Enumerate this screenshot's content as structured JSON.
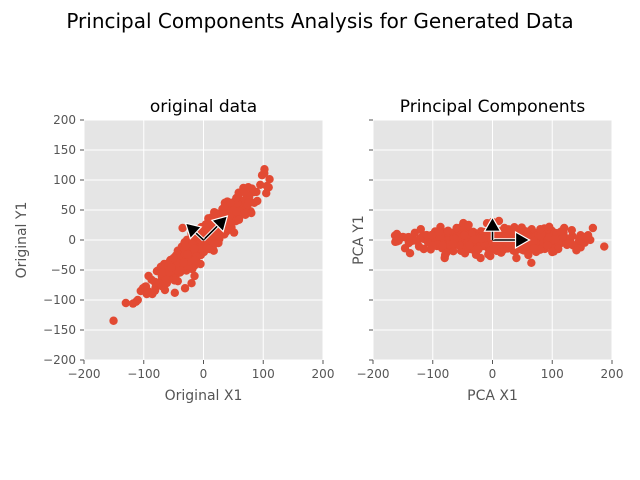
{
  "figure": {
    "title": "Principal Components Analysis for Generated Data",
    "background": "#ffffff",
    "axes_background": "#e5e5e5",
    "grid_color": "#ffffff",
    "point_color": "#e24a33",
    "arrow_color": "#000000"
  },
  "chart_data": [
    {
      "type": "scatter",
      "title": "original data",
      "xlabel": "Original X1",
      "ylabel": "Original Y1",
      "xlim": [
        -200,
        200
      ],
      "ylim": [
        -200,
        200
      ],
      "xticks": [
        -200,
        -100,
        0,
        100,
        200
      ],
      "yticks": [
        -200,
        -150,
        -100,
        -50,
        0,
        50,
        100,
        150,
        200
      ],
      "show_y_ticklabels": true,
      "grid": true,
      "cloud": {
        "kind": "correlated",
        "n": 600,
        "center": [
          0,
          0
        ],
        "major_sd": 50,
        "minor_sd": 9,
        "angle_deg": 43
      },
      "points": [
        [
          -130,
          -105
        ],
        [
          -118,
          -106
        ],
        [
          -113,
          -103
        ],
        [
          -110,
          -100
        ],
        [
          -105,
          -85
        ],
        [
          -98,
          -78
        ],
        [
          -95,
          -90
        ],
        [
          -85,
          -88
        ],
        [
          -92,
          -60
        ],
        [
          -78,
          -52
        ],
        [
          -70,
          -55
        ],
        [
          -48,
          -88
        ],
        [
          -20,
          -72
        ],
        [
          -15,
          -60
        ],
        [
          -5,
          -40
        ],
        [
          15,
          32
        ],
        [
          20,
          45
        ],
        [
          35,
          55
        ],
        [
          45,
          62
        ],
        [
          55,
          70
        ],
        [
          60,
          78
        ],
        [
          68,
          80
        ],
        [
          75,
          88
        ],
        [
          85,
          62
        ],
        [
          90,
          65
        ],
        [
          95,
          92
        ],
        [
          98,
          108
        ],
        [
          102,
          118
        ],
        [
          105,
          78
        ],
        [
          80,
          45
        ],
        [
          70,
          42
        ],
        [
          40,
          20
        ],
        [
          -30,
          -10
        ],
        [
          -20,
          10
        ],
        [
          -35,
          20
        ],
        [
          25,
          -5
        ],
        [
          10,
          -15
        ],
        [
          -50,
          -30
        ]
      ],
      "arrows": [
        {
          "from": [
            0,
            0
          ],
          "to": [
            40,
            40
          ]
        },
        {
          "from": [
            0,
            0
          ],
          "to": [
            -30,
            28
          ]
        }
      ]
    },
    {
      "type": "scatter",
      "title": "Principal Components",
      "xlabel": "PCA X1",
      "ylabel": "PCA Y1",
      "xlim": [
        -200,
        200
      ],
      "ylim": [
        -200,
        200
      ],
      "xticks": [
        -200,
        -100,
        0,
        100,
        200
      ],
      "yticks": [
        -200,
        -150,
        -100,
        -50,
        0,
        50,
        100,
        150,
        200
      ],
      "show_y_ticklabels": false,
      "grid": true,
      "cloud": {
        "kind": "correlated",
        "n": 600,
        "center": [
          0,
          0
        ],
        "major_sd": 65,
        "minor_sd": 9,
        "angle_deg": 0
      },
      "points": [
        [
          -160,
          10
        ],
        [
          -150,
          5
        ],
        [
          -140,
          -5
        ],
        [
          -138,
          -22
        ],
        [
          -130,
          12
        ],
        [
          -120,
          18
        ],
        [
          -115,
          -15
        ],
        [
          -80,
          -30
        ],
        [
          -60,
          20
        ],
        [
          -40,
          25
        ],
        [
          -20,
          -30
        ],
        [
          0,
          30
        ],
        [
          20,
          20
        ],
        [
          40,
          -30
        ],
        [
          60,
          -25
        ],
        [
          65,
          -38
        ],
        [
          80,
          18
        ],
        [
          95,
          22
        ],
        [
          110,
          -15
        ],
        [
          120,
          20
        ],
        [
          130,
          -5
        ],
        [
          145,
          2
        ],
        [
          150,
          3
        ],
        [
          155,
          5
        ],
        [
          160,
          8
        ],
        [
          168,
          20
        ],
        [
          100,
          -20
        ],
        [
          -100,
          -10
        ]
      ],
      "arrows": [
        {
          "from": [
            0,
            0
          ],
          "to": [
            62,
            0
          ]
        },
        {
          "from": [
            0,
            0
          ],
          "to": [
            0,
            38
          ]
        }
      ]
    }
  ]
}
